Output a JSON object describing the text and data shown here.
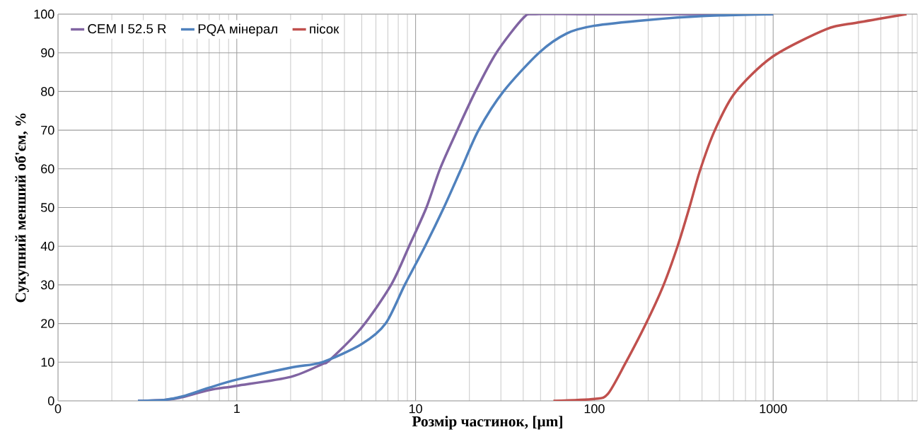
{
  "chart_data": {
    "type": "line",
    "xlabel": "Розмір частинок, [μm]",
    "ylabel": "Сукупний менший об'єм, %",
    "log": "x",
    "grid": true,
    "legend": "top left",
    "line_style": "solid",
    "marker": "none",
    "xlim": [
      0.1,
      6400
    ],
    "ylim": [
      0,
      100
    ],
    "xticks": [
      {
        "value": 0.1,
        "label": "0"
      },
      1,
      10,
      100,
      1000
    ],
    "yticks": [
      0,
      10,
      20,
      30,
      40,
      50,
      60,
      70,
      80,
      90,
      100
    ],
    "series": [
      {
        "name": "CEM I 52.5 R",
        "color": "#8064a2",
        "x": [
          0.28,
          0.4,
          0.5,
          0.7,
          1,
          2,
          3,
          3.3,
          5,
          7.3,
          9.2,
          11.5,
          13.7,
          17.1,
          21.6,
          28.3,
          40,
          47,
          100,
          1000
        ],
        "values": [
          0,
          0.3,
          1,
          2.8,
          3.9,
          6.2,
          9.5,
          10.5,
          19,
          30,
          40,
          50,
          60,
          70,
          80,
          90,
          99,
          100,
          100,
          100
        ]
      },
      {
        "name": "PQA мінерал",
        "color": "#4f81bd",
        "x": [
          0.28,
          0.4,
          0.5,
          0.7,
          1,
          2,
          3,
          5,
          6.8,
          8.7,
          11.3,
          14.4,
          18,
          22.5,
          31,
          49,
          70,
          100,
          200,
          400,
          1000
        ],
        "values": [
          0,
          0.3,
          1.2,
          3.4,
          5.5,
          8.6,
          10,
          14.7,
          20,
          30,
          40,
          50,
          60,
          70,
          80,
          90,
          95,
          97,
          98.5,
          99.5,
          100
        ]
      },
      {
        "name": "пісок",
        "color": "#c0504d",
        "x": [
          59,
          100,
          119,
          149,
          193,
          242,
          292,
          340,
          390,
          471,
          610,
          985,
          1980,
          2950,
          5570
        ],
        "values": [
          0,
          0.5,
          1.8,
          9.7,
          19.7,
          29.6,
          40,
          50,
          59.6,
          69.9,
          79.6,
          88.9,
          96.1,
          97.8,
          100
        ]
      }
    ]
  }
}
